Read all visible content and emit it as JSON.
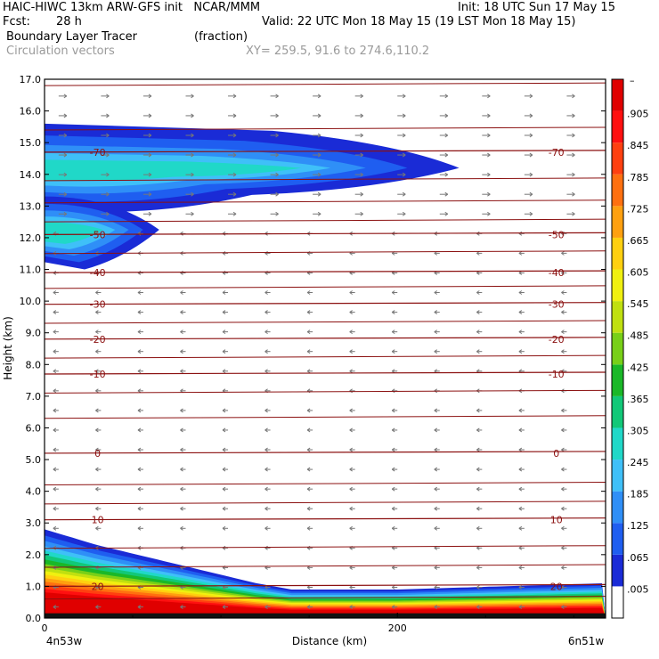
{
  "header": {
    "model_line": "HAIC-HIWC 13km ARW-GFS init   NCAR/MMM",
    "init_line": "Init: 18 UTC Sun 17 May 15",
    "fcst_label": "Fcst:",
    "fcst_value": "28 h",
    "valid_line": "Valid: 22 UTC Mon 18 May 15 (19 LST Mon 18 May 15)",
    "field_name": "Boundary Layer Tracer",
    "field_unit": "(fraction)",
    "overlay_name": "Circulation vectors",
    "xy_line": "XY= 259.5, 91.6 to 274.6,110.2"
  },
  "chart_data": {
    "type": "heatmap",
    "xlabel": "Distance (km)",
    "ylabel": "Height (km)",
    "xlim": [
      0,
      318
    ],
    "ylim": [
      0,
      17
    ],
    "x_ticks": [
      {
        "value": 0,
        "label": "0"
      },
      {
        "value": 200,
        "label": "200"
      }
    ],
    "x_end_labels": {
      "left": "4n53w",
      "right": "6n51w"
    },
    "y_ticks": [
      "0.0",
      "1.0",
      "2.0",
      "3.0",
      "4.0",
      "5.0",
      "6.0",
      "7.0",
      "8.0",
      "9.0",
      "10.0",
      "11.0",
      "12.0",
      "13.0",
      "14.0",
      "15.0",
      "16.0",
      "17.0"
    ],
    "colorbar": {
      "labels": [
        ".005",
        ".065",
        ".125",
        ".185",
        ".245",
        ".305",
        ".365",
        ".425",
        ".485",
        ".545",
        ".605",
        ".665",
        ".725",
        ".785",
        ".845",
        ".905"
      ],
      "top_label": "–",
      "colors": [
        "#ffffff",
        "#1a2bd6",
        "#1f5ef0",
        "#2f8ff7",
        "#3fc0f8",
        "#20d8c8",
        "#12c878",
        "#1ab828",
        "#78d018",
        "#c0e010",
        "#f0f010",
        "#ffd010",
        "#ffa010",
        "#ff7010",
        "#ff4010",
        "#ff1010",
        "#e00000"
      ]
    },
    "temperature_contours": [
      {
        "label": "-70",
        "height_km": 14.7
      },
      {
        "label": "-50",
        "height_km": 12.1
      },
      {
        "label": "-40",
        "height_km": 10.9
      },
      {
        "label": "-30",
        "height_km": 9.9
      },
      {
        "label": "-20",
        "height_km": 8.8
      },
      {
        "label": "-10",
        "height_km": 7.7
      },
      {
        "label": "0",
        "height_km": 5.2
      },
      {
        "label": "10",
        "height_km": 3.1
      },
      {
        "label": "20",
        "height_km": 1.0
      }
    ],
    "tracer_layers": {
      "surface_layer_top_km": [
        {
          "x": 0,
          "top": 2.8
        },
        {
          "x": 30,
          "top": 2.3
        },
        {
          "x": 60,
          "top": 1.9
        },
        {
          "x": 90,
          "top": 1.5
        },
        {
          "x": 120,
          "top": 1.1
        },
        {
          "x": 140,
          "top": 0.9
        },
        {
          "x": 200,
          "top": 0.9
        },
        {
          "x": 318,
          "top": 1.1
        }
      ],
      "upper_plume_km": {
        "x_start": 0,
        "x_end": 235,
        "bottom": 12.6,
        "top": 15.6
      },
      "lower_plume_km": {
        "x_start": 0,
        "x_end": 65,
        "bottom": 11.0,
        "top": 13.3
      }
    }
  }
}
